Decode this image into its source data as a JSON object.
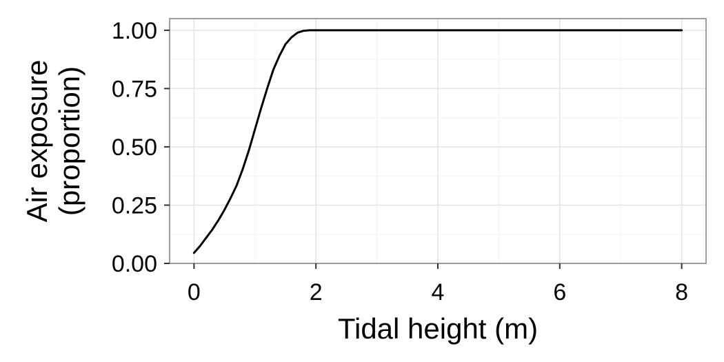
{
  "chart_data": {
    "type": "line",
    "xlabel": "Tidal height (m)",
    "ylabel_lines": [
      "Air exposure",
      "(proportion)"
    ],
    "xlim": [
      -0.4,
      8.4
    ],
    "ylim": [
      0,
      1.05
    ],
    "x_ticks": [
      0,
      2,
      4,
      6,
      8
    ],
    "x_tick_labels": [
      "0",
      "2",
      "4",
      "6",
      "8"
    ],
    "y_ticks": [
      0,
      0.25,
      0.5,
      0.75,
      1.0
    ],
    "y_tick_labels": [
      "0.00",
      "0.25",
      "0.50",
      "0.75",
      "1.00"
    ],
    "x_minor_ticks": [
      1,
      3,
      5,
      7
    ],
    "y_minor_ticks": [
      0.125,
      0.375,
      0.625,
      0.875
    ],
    "grid": true,
    "series": [
      {
        "color": "#000000",
        "x": [
          0,
          0.1,
          0.2,
          0.3,
          0.4,
          0.5,
          0.6,
          0.7,
          0.8,
          0.9,
          1.0,
          1.1,
          1.2,
          1.3,
          1.4,
          1.5,
          1.6,
          1.7,
          1.8,
          1.9,
          2.0,
          2.5,
          3,
          4,
          5,
          6,
          7,
          8
        ],
        "y": [
          0.045,
          0.075,
          0.11,
          0.145,
          0.185,
          0.23,
          0.28,
          0.335,
          0.405,
          0.485,
          0.575,
          0.665,
          0.75,
          0.83,
          0.89,
          0.94,
          0.97,
          0.99,
          0.998,
          1.0,
          1.0,
          1.0,
          1.0,
          1.0,
          1.0,
          1.0,
          1.0,
          1.0
        ]
      }
    ]
  }
}
